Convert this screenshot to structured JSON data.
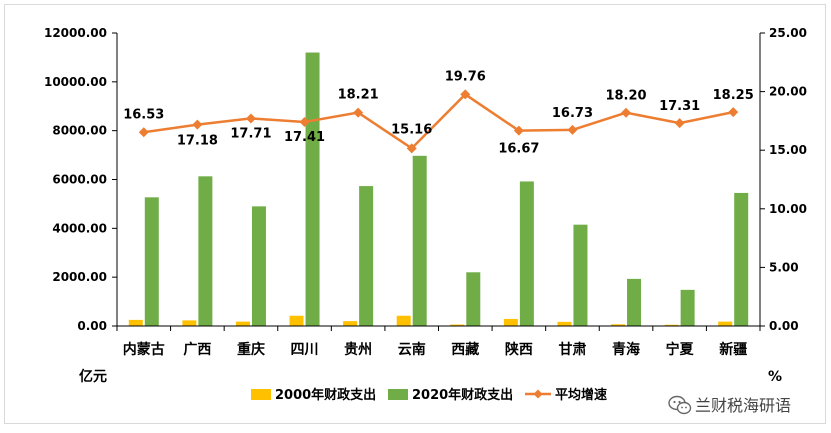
{
  "chart_data": {
    "type": "bar",
    "categories": [
      "内蒙古",
      "广西",
      "重庆",
      "四川",
      "贵州",
      "云南",
      "西藏",
      "陕西",
      "甘肃",
      "青海",
      "宁夏",
      "新疆"
    ],
    "series": [
      {
        "name": "2000年财政支出",
        "type": "bar",
        "axis": "left",
        "color": "#ffc000",
        "values": [
          250,
          230,
          180,
          420,
          200,
          420,
          60,
          290,
          170,
          70,
          50,
          180
        ]
      },
      {
        "name": "2020年财政支出",
        "type": "bar",
        "axis": "left",
        "color": "#70ad47",
        "values": [
          5270,
          6130,
          4900,
          11200,
          5730,
          6970,
          2200,
          5920,
          4150,
          1930,
          1480,
          5450
        ]
      },
      {
        "name": "平均增速",
        "type": "line",
        "axis": "right",
        "color": "#ed7d31",
        "values": [
          16.53,
          17.18,
          17.71,
          17.41,
          18.21,
          15.16,
          19.76,
          16.67,
          16.73,
          18.2,
          17.31,
          18.25
        ],
        "labels": [
          "16.53",
          "17.18",
          "17.71",
          "17.41",
          "18.21",
          "15.16",
          "19.76",
          "16.67",
          "16.73",
          "18.20",
          "17.31",
          "18.25"
        ]
      }
    ],
    "y_left": {
      "ylim": [
        0,
        12000
      ],
      "ticks": [
        "0.00",
        "2000.00",
        "4000.00",
        "6000.00",
        "8000.00",
        "10000.00",
        "12000.00"
      ],
      "unit": "亿元"
    },
    "y_right": {
      "ylim": [
        0,
        25
      ],
      "ticks": [
        "0.00",
        "5.00",
        "10.00",
        "15.00",
        "20.00",
        "25.00"
      ],
      "unit": "%"
    },
    "grid": false,
    "legend": "bottom"
  },
  "watermark": {
    "text": "兰财税海研语",
    "icon": "wechat-icon"
  }
}
